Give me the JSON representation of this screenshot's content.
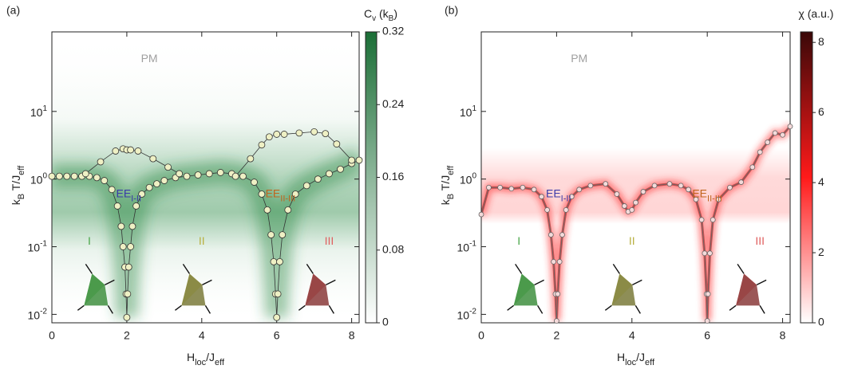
{
  "chart_data": [
    {
      "type": "scatter",
      "panel_label": "(a)",
      "xlabel": [
        {
          "text": "H"
        },
        {
          "text": "loc",
          "sub": true
        },
        {
          "text": "/J"
        },
        {
          "text": "eff",
          "sub": true
        }
      ],
      "ylabel": [
        {
          "text": "k"
        },
        {
          "text": "B",
          "sub": true
        },
        {
          "text": " T/J"
        },
        {
          "text": "eff",
          "sub": true
        }
      ],
      "xlim": [
        0,
        8.2
      ],
      "xticks": [
        0,
        2,
        4,
        6,
        8
      ],
      "ylim": [
        0.0075,
        150
      ],
      "ylog": true,
      "yticks": [
        {
          "value": 0.01,
          "label": "10",
          "exponent": "-2"
        },
        {
          "value": 0.1,
          "label": "10",
          "exponent": "-1"
        },
        {
          "value": 1,
          "label": "10",
          "exponent": "0"
        },
        {
          "value": 10,
          "label": "10",
          "exponent": "1"
        }
      ],
      "colorbar": {
        "label": [
          {
            "text": "C"
          },
          {
            "text": "v",
            "sub": true
          },
          {
            "text": " (k"
          },
          {
            "text": "B",
            "sub": true
          },
          {
            "text": ")"
          }
        ],
        "clim": [
          0,
          0.32
        ],
        "ticks": [
          0,
          0.08,
          0.16,
          0.24,
          0.32
        ],
        "colors": [
          "#ffffff",
          "#1b6e36"
        ]
      },
      "marker_color": "#eef0c4",
      "line_color": "#333333",
      "annotations": [
        {
          "text": [
            {
              "text": "PM"
            }
          ],
          "color": "#a0a0a0"
        },
        {
          "text": [
            {
              "text": "EE"
            },
            {
              "text": "I-II",
              "sub": true
            }
          ],
          "color": "#3a3aa8"
        },
        {
          "text": [
            {
              "text": "EE"
            },
            {
              "text": "II-III",
              "sub": true
            }
          ],
          "color": "#c0651e"
        },
        {
          "text": [
            {
              "text": "I"
            }
          ],
          "color": "#4aa64a"
        },
        {
          "text": [
            {
              "text": "II"
            }
          ],
          "color": "#b8b040"
        },
        {
          "text": [
            {
              "text": "III"
            }
          ],
          "color": "#e06060"
        }
      ],
      "series": [
        {
          "x": [
            0,
            0.2,
            0.4,
            0.6,
            0.8,
            1.0,
            1.2,
            1.4,
            1.6,
            1.75,
            1.85,
            1.9,
            1.95,
            1.98,
            2.0,
            2.02,
            2.05,
            2.1,
            2.15,
            2.25,
            2.4,
            2.6,
            2.8,
            3.0,
            3.3,
            3.6,
            3.9,
            4.2,
            4.5,
            4.8,
            5.1,
            5.4,
            5.6,
            5.75,
            5.85,
            5.92,
            5.97,
            6.0,
            6.03,
            6.08,
            6.15,
            6.3,
            6.5,
            6.8,
            7.1,
            7.4,
            7.7,
            8.0,
            8.2
          ],
          "values": [
            1.1,
            1.1,
            1.1,
            1.1,
            1.1,
            1.1,
            1.05,
            0.95,
            0.7,
            0.4,
            0.2,
            0.1,
            0.05,
            0.02,
            0.009,
            0.02,
            0.05,
            0.1,
            0.2,
            0.4,
            0.6,
            0.75,
            0.85,
            0.95,
            1.05,
            1.1,
            1.15,
            1.2,
            1.25,
            1.2,
            1.1,
            0.9,
            0.6,
            0.35,
            0.15,
            0.06,
            0.02,
            0.009,
            0.02,
            0.06,
            0.15,
            0.35,
            0.6,
            0.8,
            1.0,
            1.2,
            1.4,
            1.7,
            1.9
          ]
        },
        {
          "x": [
            0.9,
            1.3,
            1.7,
            1.9,
            2.0,
            2.1,
            2.3,
            2.7,
            3.1,
            3.4
          ],
          "values": [
            1.2,
            1.8,
            2.6,
            2.8,
            2.7,
            2.7,
            2.6,
            2.0,
            1.5,
            1.2
          ]
        },
        {
          "x": [
            4.9,
            5.3,
            5.6,
            5.8,
            6.0,
            6.2,
            6.6,
            7.0,
            7.3,
            7.6,
            8.0
          ],
          "values": [
            1.1,
            2.0,
            3.2,
            4.2,
            4.6,
            4.6,
            4.8,
            5.0,
            4.7,
            3.3,
            1.9
          ]
        }
      ]
    },
    {
      "type": "scatter",
      "panel_label": "(b)",
      "xlabel": [
        {
          "text": "H"
        },
        {
          "text": "loc",
          "sub": true
        },
        {
          "text": "/J"
        },
        {
          "text": "eff",
          "sub": true
        }
      ],
      "ylabel": [
        {
          "text": "k"
        },
        {
          "text": "B",
          "sub": true
        },
        {
          "text": " T/J"
        },
        {
          "text": "eff",
          "sub": true
        }
      ],
      "xlim": [
        0,
        8.2
      ],
      "xticks": [
        0,
        2,
        4,
        6,
        8
      ],
      "ylim": [
        0.0075,
        150
      ],
      "ylog": true,
      "yticks": [
        {
          "value": 0.01,
          "label": "10",
          "exponent": "-2"
        },
        {
          "value": 0.1,
          "label": "10",
          "exponent": "-1"
        },
        {
          "value": 1,
          "label": "10",
          "exponent": "0"
        },
        {
          "value": 10,
          "label": "10",
          "exponent": "1"
        }
      ],
      "colorbar": {
        "label": [
          {
            "text": "χ (a.u.)"
          }
        ],
        "clim": [
          0,
          8.3
        ],
        "ticks": [
          0,
          2,
          4,
          6,
          8
        ],
        "colors": [
          "#ffffff",
          "#ff1a1a",
          "#3a0808"
        ]
      },
      "marker_color": "#f5dada",
      "line_color": "#666666",
      "annotations": [
        {
          "text": [
            {
              "text": "PM"
            }
          ],
          "color": "#a0a0a0"
        },
        {
          "text": [
            {
              "text": "EE"
            },
            {
              "text": "I-II",
              "sub": true
            }
          ],
          "color": "#3a3aa8"
        },
        {
          "text": [
            {
              "text": "EE"
            },
            {
              "text": "II-III",
              "sub": true
            }
          ],
          "color": "#c0651e"
        },
        {
          "text": [
            {
              "text": "I"
            }
          ],
          "color": "#4aa64a"
        },
        {
          "text": [
            {
              "text": "II"
            }
          ],
          "color": "#b8b040"
        },
        {
          "text": [
            {
              "text": "III"
            }
          ],
          "color": "#e06060"
        }
      ],
      "series": [
        {
          "x": [
            0,
            0.2,
            0.5,
            0.8,
            1.1,
            1.4,
            1.6,
            1.75,
            1.85,
            1.92,
            1.97,
            2.0,
            2.03,
            2.08,
            2.15,
            2.25,
            2.4,
            2.6,
            2.9,
            3.3,
            3.6,
            3.8,
            3.9,
            4.0,
            4.1,
            4.3,
            4.6,
            5.0,
            5.3,
            5.5,
            5.7,
            5.85,
            5.93,
            5.98,
            6.0,
            6.02,
            6.07,
            6.15,
            6.3,
            6.6,
            6.9,
            7.2,
            7.4,
            7.6,
            7.8,
            8.0,
            8.2
          ],
          "values": [
            0.3,
            0.75,
            0.75,
            0.72,
            0.75,
            0.7,
            0.55,
            0.35,
            0.15,
            0.06,
            0.02,
            0.008,
            0.02,
            0.06,
            0.15,
            0.35,
            0.55,
            0.7,
            0.8,
            0.85,
            0.6,
            0.4,
            0.33,
            0.35,
            0.45,
            0.65,
            0.8,
            0.85,
            0.8,
            0.7,
            0.5,
            0.25,
            0.08,
            0.02,
            0.008,
            0.02,
            0.08,
            0.25,
            0.5,
            0.75,
            0.9,
            1.5,
            2.5,
            3.5,
            4.8,
            4.5,
            6.0
          ]
        }
      ]
    }
  ]
}
